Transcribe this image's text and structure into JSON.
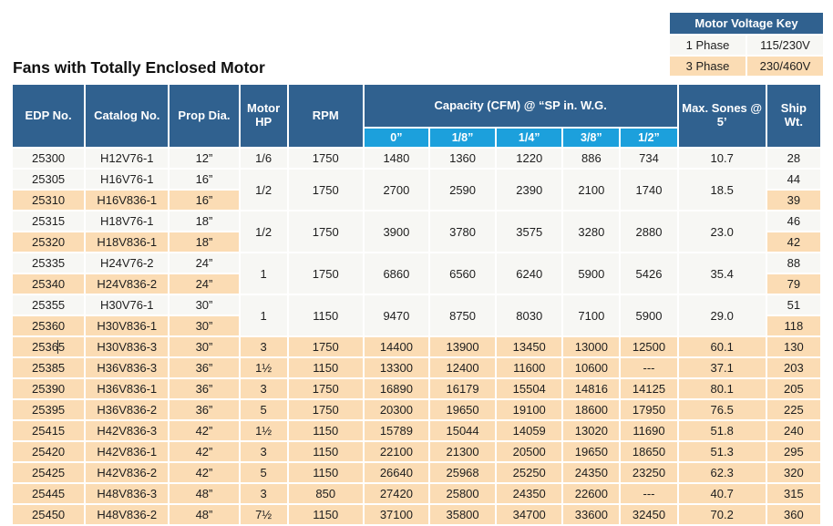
{
  "page_title": "Fans with Totally Enclosed Motor",
  "voltage_key": {
    "title": "Motor Voltage Key",
    "rows": [
      {
        "label": "1 Phase",
        "value": "115/230V",
        "shade": false
      },
      {
        "label": "3 Phase",
        "value": "230/460V",
        "shade": true
      }
    ]
  },
  "colors": {
    "header_blue": "#30618F",
    "subheader_blue": "#1CA0DC",
    "row_peach": "#FBDCB4",
    "row_plain": "#F7F7F4"
  },
  "table": {
    "headers": {
      "edp": "EDP No.",
      "catalog": "Catalog No.",
      "prop_dia": "Prop Dia.",
      "motor_hp": "Motor HP",
      "rpm": "RPM",
      "capacity_group": "Capacity (CFM) @ “SP in. W.G.",
      "capacity_cols": [
        "0”",
        "1/8”",
        "1/4”",
        "3/8”",
        "1/2”"
      ],
      "max_sones": "Max. Sones @ 5’",
      "ship_wt": "Ship Wt."
    },
    "groups": [
      {
        "shared": {
          "motor_hp": "1/6",
          "rpm": "1750",
          "capacity": [
            "1480",
            "1360",
            "1220",
            "886",
            "734"
          ],
          "max_sones": "10.7"
        },
        "rows": [
          {
            "edp": "25300",
            "catalog": "H12V76-1",
            "prop_dia": "12”",
            "ship_wt": "28",
            "shade": false
          }
        ]
      },
      {
        "shared": {
          "motor_hp": "1/2",
          "rpm": "1750",
          "capacity": [
            "2700",
            "2590",
            "2390",
            "2100",
            "1740"
          ],
          "max_sones": "18.5"
        },
        "rows": [
          {
            "edp": "25305",
            "catalog": "H16V76-1",
            "prop_dia": "16”",
            "ship_wt": "44",
            "shade": false
          },
          {
            "edp": "25310",
            "catalog": "H16V836-1",
            "prop_dia": "16”",
            "ship_wt": "39",
            "shade": true
          }
        ]
      },
      {
        "shared": {
          "motor_hp": "1/2",
          "rpm": "1750",
          "capacity": [
            "3900",
            "3780",
            "3575",
            "3280",
            "2880"
          ],
          "max_sones": "23.0"
        },
        "rows": [
          {
            "edp": "25315",
            "catalog": "H18V76-1",
            "prop_dia": "18”",
            "ship_wt": "46",
            "shade": false
          },
          {
            "edp": "25320",
            "catalog": "H18V836-1",
            "prop_dia": "18”",
            "ship_wt": "42",
            "shade": true
          }
        ]
      },
      {
        "shared": {
          "motor_hp": "1",
          "rpm": "1750",
          "capacity": [
            "6860",
            "6560",
            "6240",
            "5900",
            "5426"
          ],
          "max_sones": "35.4"
        },
        "rows": [
          {
            "edp": "25335",
            "catalog": "H24V76-2",
            "prop_dia": "24”",
            "ship_wt": "88",
            "shade": false
          },
          {
            "edp": "25340",
            "catalog": "H24V836-2",
            "prop_dia": "24”",
            "ship_wt": "79",
            "shade": true
          }
        ]
      },
      {
        "shared": {
          "motor_hp": "1",
          "rpm": "1150",
          "capacity": [
            "9470",
            "8750",
            "8030",
            "7100",
            "5900"
          ],
          "max_sones": "29.0"
        },
        "rows": [
          {
            "edp": "25355",
            "catalog": "H30V76-1",
            "prop_dia": "30”",
            "ship_wt": "51",
            "shade": false
          },
          {
            "edp": "25360",
            "catalog": "H30V836-1",
            "prop_dia": "30”",
            "ship_wt": "118",
            "shade": true
          }
        ]
      },
      {
        "shared": {
          "motor_hp": "3",
          "rpm": "1750",
          "capacity": [
            "14400",
            "13900",
            "13450",
            "13000",
            "12500"
          ],
          "max_sones": "60.1"
        },
        "rows": [
          {
            "edp": "25365",
            "catalog": "H30V836-3",
            "prop_dia": "30”",
            "ship_wt": "130",
            "shade": true,
            "caret": true
          }
        ]
      },
      {
        "shared": {
          "motor_hp": "1½",
          "rpm": "1150",
          "capacity": [
            "13300",
            "12400",
            "11600",
            "10600",
            "---"
          ],
          "max_sones": "37.1"
        },
        "rows": [
          {
            "edp": "25385",
            "catalog": "H36V836-3",
            "prop_dia": "36”",
            "ship_wt": "203",
            "shade": true
          }
        ]
      },
      {
        "shared": {
          "motor_hp": "3",
          "rpm": "1750",
          "capacity": [
            "16890",
            "16179",
            "15504",
            "14816",
            "14125"
          ],
          "max_sones": "80.1"
        },
        "rows": [
          {
            "edp": "25390",
            "catalog": "H36V836-1",
            "prop_dia": "36”",
            "ship_wt": "205",
            "shade": true
          }
        ]
      },
      {
        "shared": {
          "motor_hp": "5",
          "rpm": "1750",
          "capacity": [
            "20300",
            "19650",
            "19100",
            "18600",
            "17950"
          ],
          "max_sones": "76.5"
        },
        "rows": [
          {
            "edp": "25395",
            "catalog": "H36V836-2",
            "prop_dia": "36”",
            "ship_wt": "225",
            "shade": true
          }
        ]
      },
      {
        "shared": {
          "motor_hp": "1½",
          "rpm": "1150",
          "capacity": [
            "15789",
            "15044",
            "14059",
            "13020",
            "11690"
          ],
          "max_sones": "51.8"
        },
        "rows": [
          {
            "edp": "25415",
            "catalog": "H42V836-3",
            "prop_dia": "42”",
            "ship_wt": "240",
            "shade": true
          }
        ]
      },
      {
        "shared": {
          "motor_hp": "3",
          "rpm": "1150",
          "capacity": [
            "22100",
            "21300",
            "20500",
            "19650",
            "18650"
          ],
          "max_sones": "51.3"
        },
        "rows": [
          {
            "edp": "25420",
            "catalog": "H42V836-1",
            "prop_dia": "42”",
            "ship_wt": "295",
            "shade": true
          }
        ]
      },
      {
        "shared": {
          "motor_hp": "5",
          "rpm": "1150",
          "capacity": [
            "26640",
            "25968",
            "25250",
            "24350",
            "23250"
          ],
          "max_sones": "62.3"
        },
        "rows": [
          {
            "edp": "25425",
            "catalog": "H42V836-2",
            "prop_dia": "42”",
            "ship_wt": "320",
            "shade": true
          }
        ]
      },
      {
        "shared": {
          "motor_hp": "3",
          "rpm": "850",
          "capacity": [
            "27420",
            "25800",
            "24350",
            "22600",
            "---"
          ],
          "max_sones": "40.7"
        },
        "rows": [
          {
            "edp": "25445",
            "catalog": "H48V836-3",
            "prop_dia": "48”",
            "ship_wt": "315",
            "shade": true
          }
        ]
      },
      {
        "shared": {
          "motor_hp": "7½",
          "rpm": "1150",
          "capacity": [
            "37100",
            "35800",
            "34700",
            "33600",
            "32450"
          ],
          "max_sones": "70.2"
        },
        "rows": [
          {
            "edp": "25450",
            "catalog": "H48V836-2",
            "prop_dia": "48”",
            "ship_wt": "360",
            "shade": true
          }
        ]
      }
    ]
  }
}
